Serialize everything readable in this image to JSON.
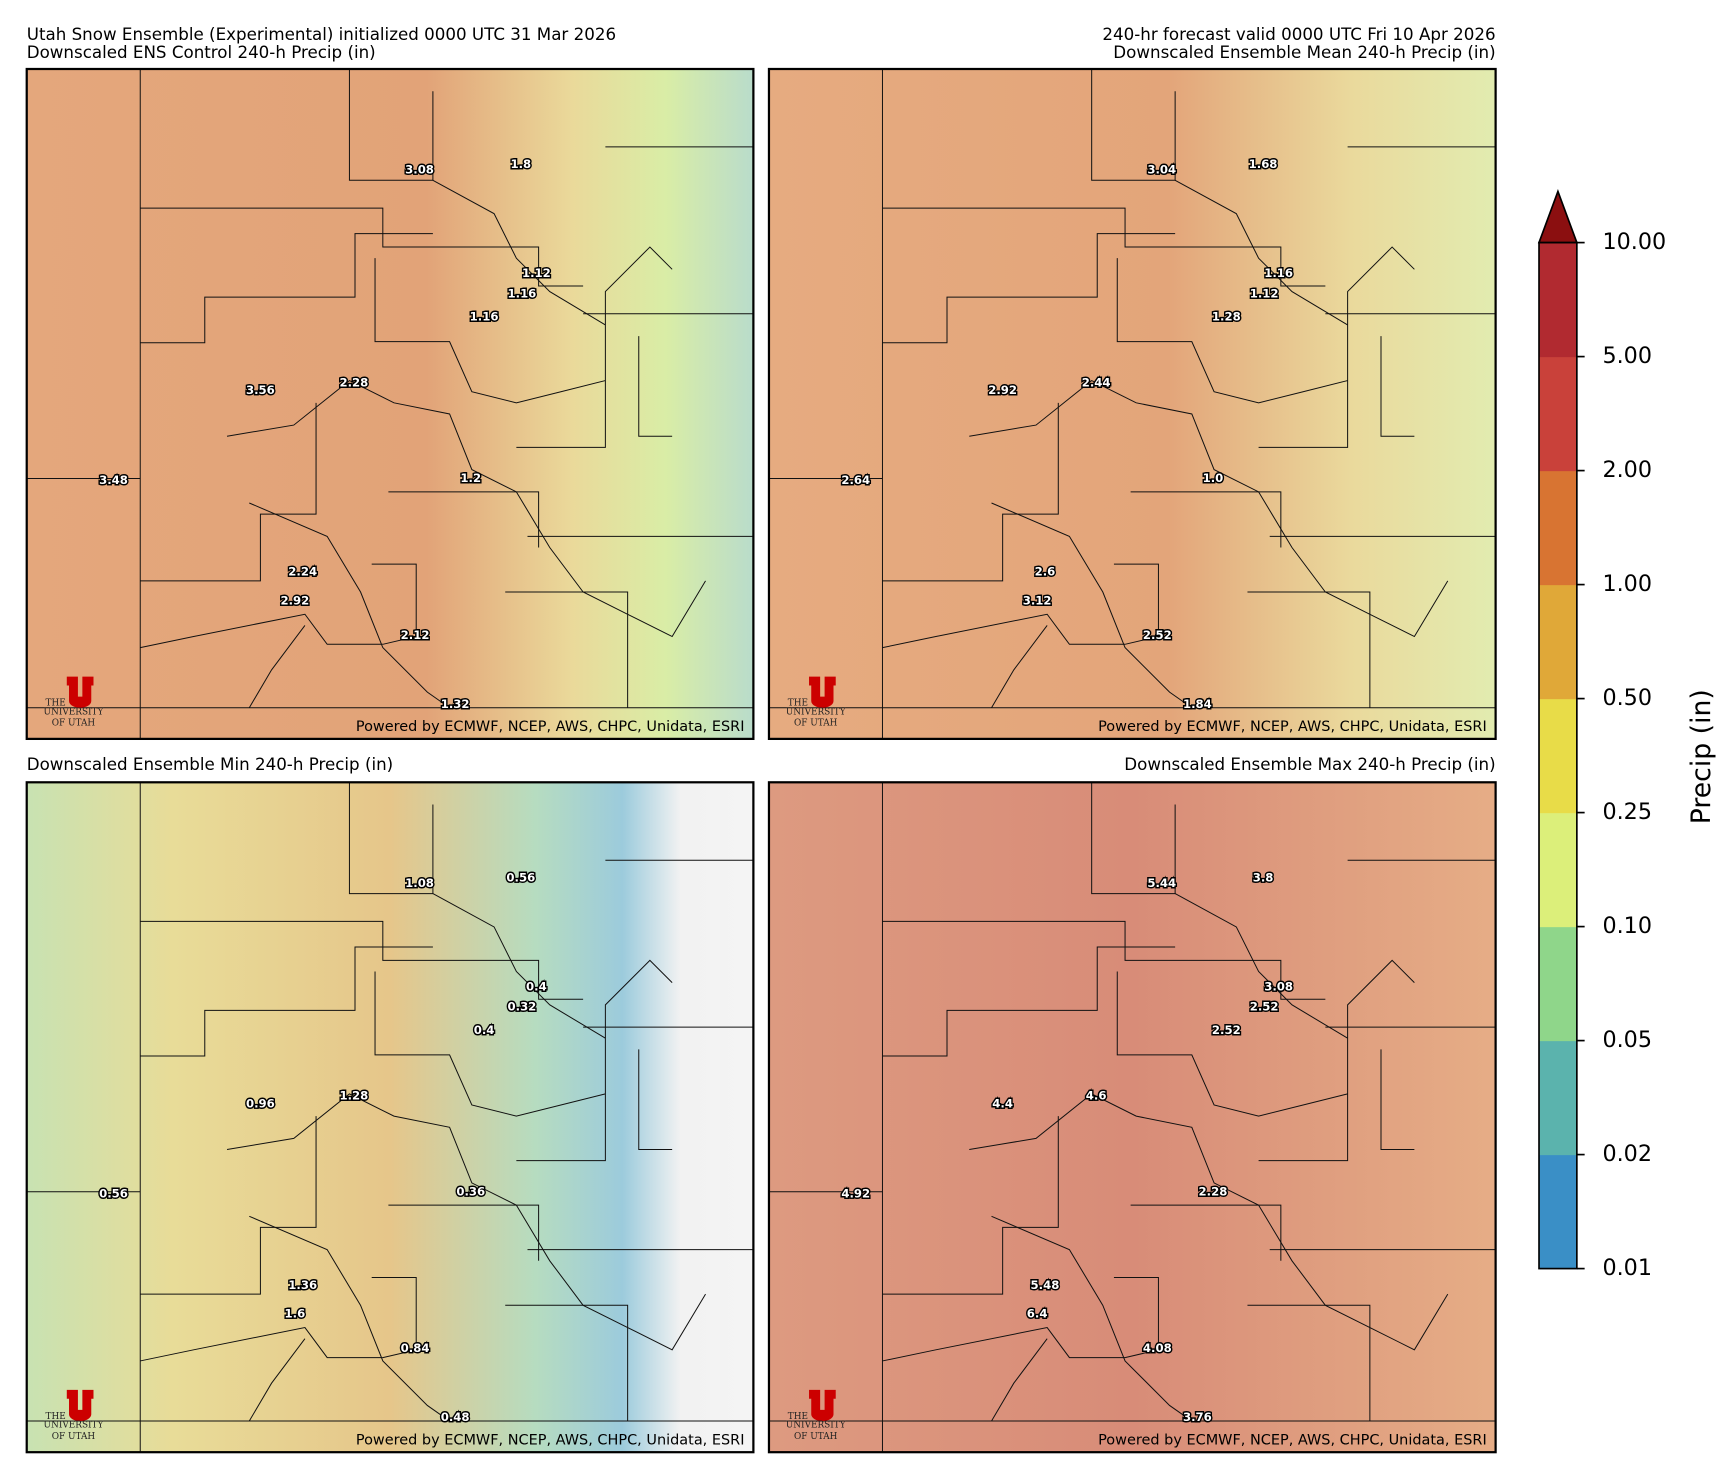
{
  "header": {
    "left": "Utah Snow Ensemble (Experimental) initialized 0000 UTC 31 Mar 2026",
    "right": "240-hr forecast valid 0000 UTC Fri 10 Apr 2026"
  },
  "panels": [
    {
      "title": "Downscaled ENS Control 240-h Precip (in)",
      "labels": [
        "3.08",
        "1.8",
        "1.12",
        "1.16",
        "1.16",
        "3.56",
        "2.28",
        "3.48",
        "1.2",
        "2.24",
        "2.92",
        "2.12",
        "1.32"
      ]
    },
    {
      "title": "Downscaled Ensemble Mean 240-h Precip (in)",
      "labels": [
        "3.04",
        "1.68",
        "1.16",
        "1.12",
        "1.28",
        "2.92",
        "2.44",
        "2.64",
        "1.0",
        "2.6",
        "3.12",
        "2.52",
        "1.84"
      ]
    },
    {
      "title": "Downscaled Ensemble Min 240-h Precip (in)",
      "labels": [
        "1.08",
        "0.56",
        "0.4",
        "0.32",
        "0.4",
        "0.96",
        "1.28",
        "0.56",
        "0.36",
        "1.36",
        "1.6",
        "0.84",
        "0.48"
      ]
    },
    {
      "title": "Downscaled Ensemble Max 240-h Precip (in)",
      "labels": [
        "5.44",
        "3.8",
        "3.08",
        "2.52",
        "2.52",
        "4.4",
        "4.6",
        "4.92",
        "2.28",
        "5.48",
        "6.4",
        "4.08",
        "3.76"
      ]
    }
  ],
  "credit": "Powered by ECMWF, NCEP, AWS, CHPC, Unidata, ESRI",
  "logo": {
    "the": "THE",
    "name": "UNIVERSITY",
    "of": "OF UTAH"
  },
  "colorbar": {
    "label": "Precip (in)",
    "ticks": [
      "0.01",
      "0.02",
      "0.05",
      "0.10",
      "0.25",
      "0.50",
      "1.00",
      "2.00",
      "5.00",
      "10.00"
    ],
    "colors": [
      "#3a8fc6",
      "#5bb3ad",
      "#8fd68a",
      "#dcef7a",
      "#e8dc48",
      "#e0a838",
      "#d87432",
      "#c9413a",
      "#b12a30"
    ],
    "extend_color": "#8b0f10"
  }
}
